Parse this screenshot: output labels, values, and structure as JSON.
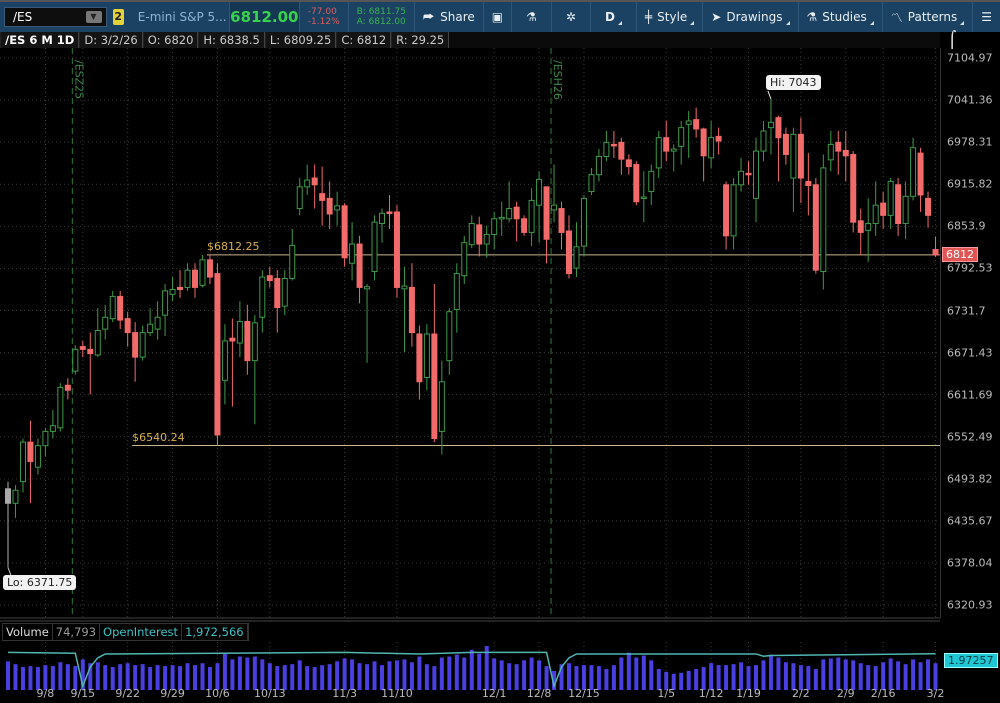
{
  "toolbar": {
    "symbol": "/ES",
    "link_badge": "2",
    "description": "E-mini S&P 5...",
    "last": "6812.00",
    "net_change": "-77.00",
    "pct_change": "-1.12%",
    "bid": "B: 6811.75",
    "ask": "A: 6812.00",
    "share": "Share",
    "aggregation": "D",
    "style": "Style",
    "drawings": "Drawings",
    "studies": "Studies",
    "patterns": "Patterns"
  },
  "info_bar": {
    "title": "/ES 6 M 1D",
    "date": "D: 3/2/26",
    "open": "O: 6820",
    "high": "H: 6838.5",
    "low": "L: 6809.25",
    "close": "C: 6812",
    "range": "R: 29.25"
  },
  "colors": {
    "up": "#3e9a48",
    "down": "#f26b6b",
    "level_line": "#c9b78c",
    "level_text": "#d9b04a",
    "rollover_line": "#2f7a3a",
    "volume": "#4a3fe0",
    "open_interest": "#4fb6b0"
  },
  "chart_data": [
    {
      "type": "candlestick",
      "y_ticks": [
        7104.97,
        7041.36,
        6978.31,
        6915.82,
        6853.9,
        6792.53,
        6731.7,
        6671.43,
        6611.69,
        6552.49,
        6493.82,
        6435.67,
        6378.04,
        6320.93
      ],
      "x_ticks": [
        "9/8",
        "9/15",
        "9/22",
        "9/29",
        "10/6",
        "10/13",
        "11/3",
        "11/10",
        "12/1",
        "12/8",
        "12/15",
        "1/5",
        "1/12",
        "1/19",
        "2/2",
        "2/9",
        "2/16",
        "3/2"
      ],
      "grid": true,
      "last_price_label": "6812",
      "hi_label": "Hi: 7043",
      "lo_label": "Lo: 6371.75",
      "levels": [
        {
          "label": "$6812.25",
          "value": 6812.25
        },
        {
          "label": "$6540.24",
          "value": 6540.24
        }
      ],
      "rollovers": [
        "/ESZ25",
        "/ESH26"
      ],
      "ohlc": [
        [
          6460,
          6490,
          6371.75,
          6480
        ],
        [
          6460,
          6485,
          6440,
          6478
        ],
        [
          6490,
          6550,
          6475,
          6545
        ],
        [
          6545,
          6575,
          6460,
          6518
        ],
        [
          6510,
          6550,
          6500,
          6540
        ],
        [
          6540,
          6565,
          6525,
          6560
        ],
        [
          6560,
          6590,
          6550,
          6568
        ],
        [
          6565,
          6628,
          6560,
          6622
        ],
        [
          6625,
          6635,
          6605,
          6618
        ],
        [
          6645,
          6682,
          6640,
          6676
        ],
        [
          6680,
          6688,
          6665,
          6676
        ],
        [
          6676,
          6700,
          6612,
          6670
        ],
        [
          6668,
          6735,
          6665,
          6703
        ],
        [
          6705,
          6740,
          6690,
          6722
        ],
        [
          6720,
          6760,
          6715,
          6752
        ],
        [
          6752,
          6760,
          6705,
          6718
        ],
        [
          6720,
          6730,
          6680,
          6700
        ],
        [
          6700,
          6715,
          6630,
          6665
        ],
        [
          6665,
          6710,
          6660,
          6700
        ],
        [
          6700,
          6735,
          6695,
          6712
        ],
        [
          6705,
          6745,
          6690,
          6722
        ],
        [
          6725,
          6770,
          6695,
          6760
        ],
        [
          6755,
          6780,
          6745,
          6762
        ],
        [
          6765,
          6790,
          6750,
          6762
        ],
        [
          6765,
          6800,
          6760,
          6790
        ],
        [
          6790,
          6800,
          6750,
          6765
        ],
        [
          6768,
          6812,
          6765,
          6805
        ],
        [
          6805,
          6812.25,
          6770,
          6780
        ],
        [
          6785,
          6800,
          6540.24,
          6555
        ],
        [
          6632,
          6712,
          6598,
          6688
        ],
        [
          6692,
          6720,
          6595,
          6688
        ],
        [
          6685,
          6745,
          6665,
          6716
        ],
        [
          6716,
          6740,
          6640,
          6660
        ],
        [
          6660,
          6725,
          6570,
          6714
        ],
        [
          6722,
          6790,
          6700,
          6780
        ],
        [
          6782,
          6795,
          6765,
          6775
        ],
        [
          6778,
          6790,
          6700,
          6736
        ],
        [
          6738,
          6790,
          6725,
          6778
        ],
        [
          6778,
          6850,
          6775,
          6826
        ],
        [
          6880,
          6925,
          6870,
          6912
        ],
        [
          6912,
          6945,
          6900,
          6922
        ],
        [
          6925,
          6945,
          6880,
          6915
        ],
        [
          6902,
          6942,
          6855,
          6892
        ],
        [
          6895,
          6920,
          6850,
          6872
        ],
        [
          6878,
          6905,
          6855,
          6884
        ],
        [
          6884,
          6888,
          6795,
          6808
        ],
        [
          6800,
          6860,
          6775,
          6828
        ],
        [
          6828,
          6840,
          6742,
          6765
        ],
        [
          6763,
          6770,
          6657,
          6766
        ],
        [
          6788,
          6870,
          6775,
          6860
        ],
        [
          6858,
          6880,
          6830,
          6873
        ],
        [
          6875,
          6900,
          6850,
          6873
        ],
        [
          6875,
          6885,
          6750,
          6765
        ],
        [
          6763,
          6795,
          6672,
          6767
        ],
        [
          6765,
          6800,
          6680,
          6700
        ],
        [
          6698,
          6710,
          6605,
          6630
        ],
        [
          6636,
          6712,
          6618,
          6698
        ],
        [
          6698,
          6770,
          6545,
          6550
        ],
        [
          6560,
          6660,
          6528,
          6630
        ],
        [
          6660,
          6735,
          6640,
          6730
        ],
        [
          6733,
          6800,
          6700,
          6785
        ],
        [
          6782,
          6840,
          6770,
          6830
        ],
        [
          6827,
          6870,
          6822,
          6858
        ],
        [
          6856,
          6868,
          6810,
          6828
        ],
        [
          6828,
          6855,
          6808,
          6842
        ],
        [
          6842,
          6875,
          6820,
          6865
        ],
        [
          6865,
          6890,
          6840,
          6867
        ],
        [
          6865,
          6920,
          6860,
          6880
        ],
        [
          6882,
          6890,
          6832,
          6865
        ],
        [
          6865,
          6870,
          6840,
          6845
        ],
        [
          6845,
          6910,
          6825,
          6892
        ],
        [
          6885,
          6935,
          6830,
          6923
        ],
        [
          6912,
          6912,
          6800,
          6835
        ],
        [
          6878,
          6945,
          6860,
          6885
        ],
        [
          6880,
          6890,
          6820,
          6845
        ],
        [
          6847,
          6870,
          6778,
          6785
        ],
        [
          6793,
          6860,
          6780,
          6824
        ],
        [
          6825,
          6900,
          6810,
          6895
        ],
        [
          6905,
          6940,
          6900,
          6930
        ],
        [
          6930,
          6968,
          6920,
          6957
        ],
        [
          6957,
          6995,
          6950,
          6978
        ],
        [
          6975,
          6995,
          6955,
          6973
        ],
        [
          6978,
          6985,
          6930,
          6953
        ],
        [
          6952,
          6960,
          6930,
          6942
        ],
        [
          6945,
          6950,
          6885,
          6890
        ],
        [
          6895,
          6935,
          6860,
          6897
        ],
        [
          6905,
          6945,
          6885,
          6935
        ],
        [
          6940,
          6995,
          6925,
          6985
        ],
        [
          6985,
          7010,
          6950,
          6965
        ],
        [
          6965,
          6975,
          6935,
          6968
        ],
        [
          6972,
          7010,
          6945,
          7000
        ],
        [
          7005,
          7025,
          6955,
          7010
        ],
        [
          7012,
          7030,
          6985,
          6998
        ],
        [
          6998,
          7000,
          6920,
          6958
        ],
        [
          6955,
          7010,
          6940,
          6985
        ],
        [
          6987,
          7000,
          6960,
          6980
        ],
        [
          6915,
          6920,
          6820,
          6840
        ],
        [
          6840,
          6925,
          6820,
          6915
        ],
        [
          6915,
          6955,
          6905,
          6935
        ],
        [
          6932,
          6950,
          6915,
          6930
        ],
        [
          6895,
          6985,
          6860,
          6965
        ],
        [
          6965,
          7010,
          6950,
          6995
        ],
        [
          7000,
          7043,
          6960,
          7008
        ],
        [
          7015,
          7018,
          6920,
          6985
        ],
        [
          6990,
          7000,
          6945,
          6960
        ],
        [
          6925,
          7000,
          6875,
          6990
        ],
        [
          6990,
          7015,
          6888,
          6925
        ],
        [
          6920,
          6962,
          6870,
          6914
        ],
        [
          6915,
          6925,
          6785,
          6790
        ],
        [
          6788,
          6960,
          6762,
          6940
        ],
        [
          6952,
          6995,
          6935,
          6975
        ],
        [
          6978,
          6995,
          6930,
          6965
        ],
        [
          6966,
          6995,
          6920,
          6958
        ],
        [
          6960,
          6965,
          6845,
          6860
        ],
        [
          6862,
          6880,
          6812,
          6845
        ],
        [
          6848,
          6895,
          6802,
          6858
        ],
        [
          6858,
          6920,
          6840,
          6885
        ],
        [
          6888,
          6905,
          6850,
          6870
        ],
        [
          6870,
          6925,
          6850,
          6920
        ],
        [
          6915,
          6925,
          6840,
          6858
        ],
        [
          6858,
          6920,
          6835,
          6898
        ],
        [
          6898,
          6985,
          6892,
          6970
        ],
        [
          6962,
          6970,
          6875,
          6900
        ],
        [
          6895,
          6905,
          6852,
          6870
        ],
        [
          6820,
          6838.5,
          6809.25,
          6812
        ]
      ],
      "volume": [
        1500,
        1350,
        1200,
        1250,
        1200,
        1300,
        1250,
        1450,
        1350,
        1250,
        1600,
        1400,
        1450,
        1300,
        1200,
        1350,
        1400,
        1300,
        1350,
        1200,
        1300,
        1250,
        1300,
        1250,
        1400,
        1300,
        1400,
        1200,
        1400,
        1900,
        1600,
        1750,
        1700,
        1750,
        1600,
        1400,
        1250,
        1300,
        1350,
        1550,
        1250,
        1200,
        1300,
        1350,
        1500,
        1650,
        1600,
        1400,
        1350,
        1500,
        1300,
        1500,
        1550,
        1600,
        1450,
        1750,
        1350,
        1250,
        1700,
        1750,
        1850,
        1700,
        2100,
        1900,
        2300,
        1650,
        1550,
        1400,
        1350,
        1550,
        1700,
        1550,
        1250,
        1000,
        1350,
        1400,
        1250,
        1300,
        1300,
        1250,
        1100,
        1300,
        1700,
        1950,
        1700,
        1800,
        1550,
        1100,
        950,
        850,
        900,
        1000,
        1100,
        1200,
        1400,
        1300,
        1300,
        1350,
        1450,
        1250,
        1300,
        1550,
        1850,
        1700,
        1450,
        1400,
        1300,
        1250,
        1100,
        1600,
        1650,
        1700,
        1600,
        1550,
        1400,
        1300,
        1250,
        1450,
        1650,
        1500,
        1350,
        1600,
        1450,
        1600,
        1400
      ],
      "open_interest_points": [
        [
          0,
          1.99
        ],
        [
          9,
          1.98
        ],
        [
          10,
          1.55
        ],
        [
          11,
          1.8
        ],
        [
          12,
          1.92
        ],
        [
          13,
          1.97
        ],
        [
          45,
          1.99
        ],
        [
          55,
          1.97
        ],
        [
          62,
          1.99
        ],
        [
          72,
          1.99
        ],
        [
          73,
          1.55
        ],
        [
          74,
          1.8
        ],
        [
          75,
          1.92
        ],
        [
          76,
          1.97
        ],
        [
          100,
          1.97
        ],
        [
          101,
          1.94
        ],
        [
          102,
          1.95
        ],
        [
          124,
          1.97257
        ]
      ]
    }
  ],
  "volume_panel": {
    "volume_label": "Volume",
    "volume_value": "74,793",
    "oi_label": "OpenInterest",
    "oi_value": "1,972,566",
    "oi_badge": "1.97257"
  }
}
